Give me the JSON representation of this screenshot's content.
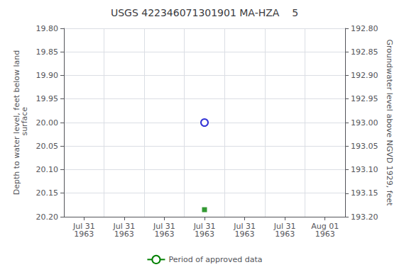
{
  "chart_data": {
    "type": "scatter",
    "title": "USGS 422346071301901 MA-HZA    5",
    "ylabel": "Depth to water level, feet below land\n surface",
    "y2label": "Groundwater level above NGVD 1929, feet",
    "categories": [
      "Jul 31\n1963",
      "Jul 31\n1963",
      "Jul 31\n1963",
      "Jul 31\n1963",
      "Jul 31\n1963",
      "Jul 31\n1963",
      "Aug 01\n1963"
    ],
    "series": [
      {
        "type": "scatter",
        "marker": "open_circle",
        "color": "#0000cc",
        "values": [
          null,
          null,
          null,
          20.0,
          null,
          null,
          null
        ]
      },
      {
        "type": "scatter",
        "marker": "square",
        "color": "#008000",
        "values": [
          null,
          null,
          null,
          20.185,
          null,
          null,
          null
        ]
      },
      {
        "type": "line",
        "name": "Period of approved data",
        "color": "#008000",
        "line_style": "solid",
        "values": [
          null,
          null,
          null,
          null,
          null,
          null,
          null
        ]
      }
    ],
    "ylim": [
      20.2,
      19.8
    ],
    "yticks": [
      {
        "value": 19.8,
        "label": "19.80"
      },
      {
        "value": 19.85,
        "label": "19.85"
      },
      {
        "value": 19.9,
        "label": "19.90"
      },
      {
        "value": 19.95,
        "label": "19.95"
      },
      {
        "value": 20.0,
        "label": "20.00"
      },
      {
        "value": 20.05,
        "label": "20.05"
      },
      {
        "value": 20.1,
        "label": "20.10"
      },
      {
        "value": 20.15,
        "label": "20.15"
      },
      {
        "value": 20.2,
        "label": "20.20"
      }
    ],
    "y2lim": [
      193.2,
      192.8
    ],
    "y2ticks": [
      {
        "value": 192.8,
        "label": "192.80"
      },
      {
        "value": 192.85,
        "label": "192.85"
      },
      {
        "value": 192.9,
        "label": "192.90"
      },
      {
        "value": 192.95,
        "label": "192.95"
      },
      {
        "value": 193.0,
        "label": "193.00"
      },
      {
        "value": 193.05,
        "label": "193.05"
      },
      {
        "value": 193.1,
        "label": "193.10"
      },
      {
        "value": 193.15,
        "label": "193.15"
      },
      {
        "value": 193.2,
        "label": "193.20"
      }
    ],
    "grid": true,
    "legend": "bottom"
  }
}
